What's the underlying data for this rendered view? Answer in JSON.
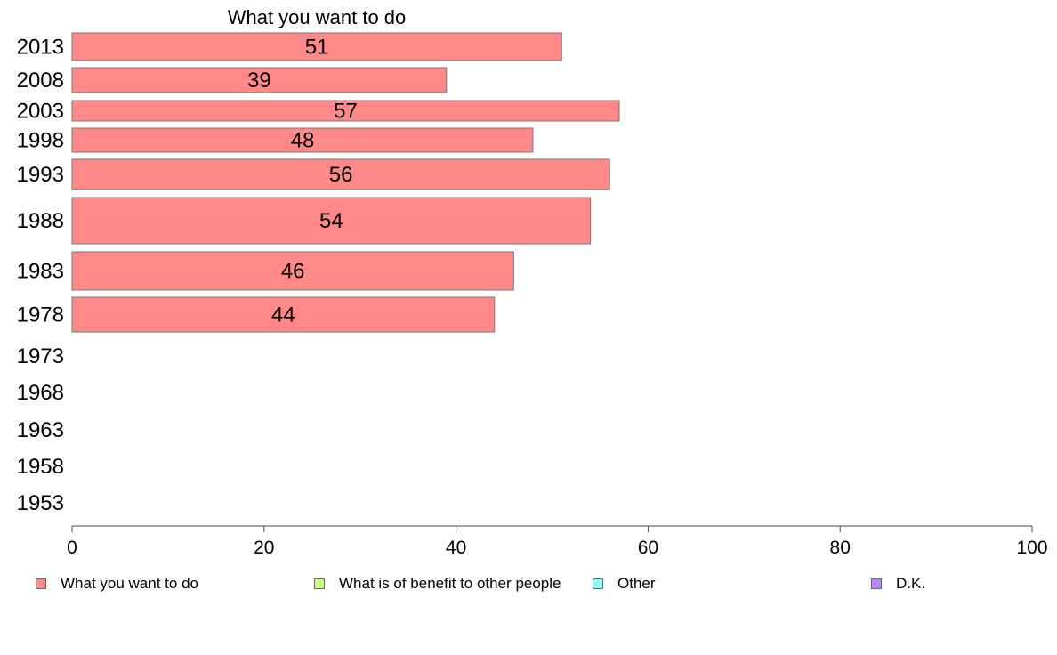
{
  "chart_data": {
    "type": "bar",
    "orientation": "horizontal",
    "title": "What you want to do",
    "categories": [
      "2013",
      "2008",
      "2003",
      "1998",
      "1993",
      "1988",
      "1983",
      "1978",
      "1973",
      "1968",
      "1963",
      "1958",
      "1953"
    ],
    "series": [
      {
        "name": "What you want to do",
        "color": "#ff8888",
        "values": [
          51,
          39,
          57,
          48,
          56,
          54,
          46,
          44,
          null,
          null,
          null,
          null,
          null
        ]
      }
    ],
    "xlim": [
      0,
      100
    ],
    "xticks": [
      "0",
      "20",
      "40",
      "60",
      "80",
      "100"
    ],
    "grid": false,
    "legend_position": "bottom"
  },
  "legend": {
    "items": [
      {
        "label": "What you want to do",
        "color": "#ff8888"
      },
      {
        "label": "What is of benefit to other people",
        "color": "#ccff88"
      },
      {
        "label": "Other",
        "color": "#88ffff"
      },
      {
        "label": "D.K.",
        "color": "#bb88ff"
      }
    ]
  }
}
